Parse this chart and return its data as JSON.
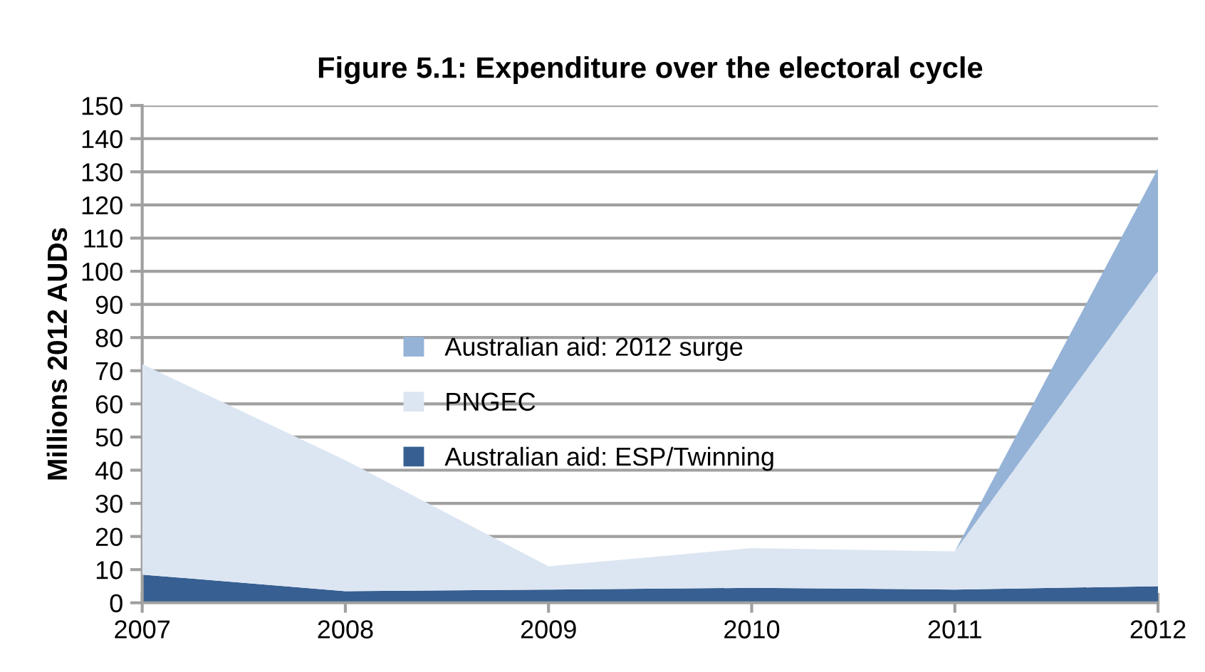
{
  "chart_data": {
    "type": "area",
    "title": "Figure 5.1: Expenditure over the electoral cycle",
    "ylabel": "Millions 2012 AUDs",
    "categories": [
      "2007",
      "2008",
      "2009",
      "2010",
      "2011",
      "2012"
    ],
    "stacked": true,
    "series": [
      {
        "name": "Australian aid: ESP/Twinning",
        "color": "#375f92",
        "values": [
          8.5,
          3.5,
          4,
          4.5,
          4,
          5
        ]
      },
      {
        "name": "PNGEC",
        "color": "#dce6f2",
        "values": [
          63.5,
          39.5,
          7,
          12,
          11.5,
          95
        ]
      },
      {
        "name": "Australian aid: 2012 surge",
        "color": "#95b3d7",
        "values": [
          0,
          0,
          0,
          0,
          0,
          31
        ]
      }
    ],
    "ylim": [
      0,
      150
    ],
    "yticks": [
      0,
      10,
      20,
      30,
      40,
      50,
      60,
      70,
      80,
      90,
      100,
      110,
      120,
      130,
      140,
      150
    ],
    "grid": "y",
    "legend": "center"
  }
}
